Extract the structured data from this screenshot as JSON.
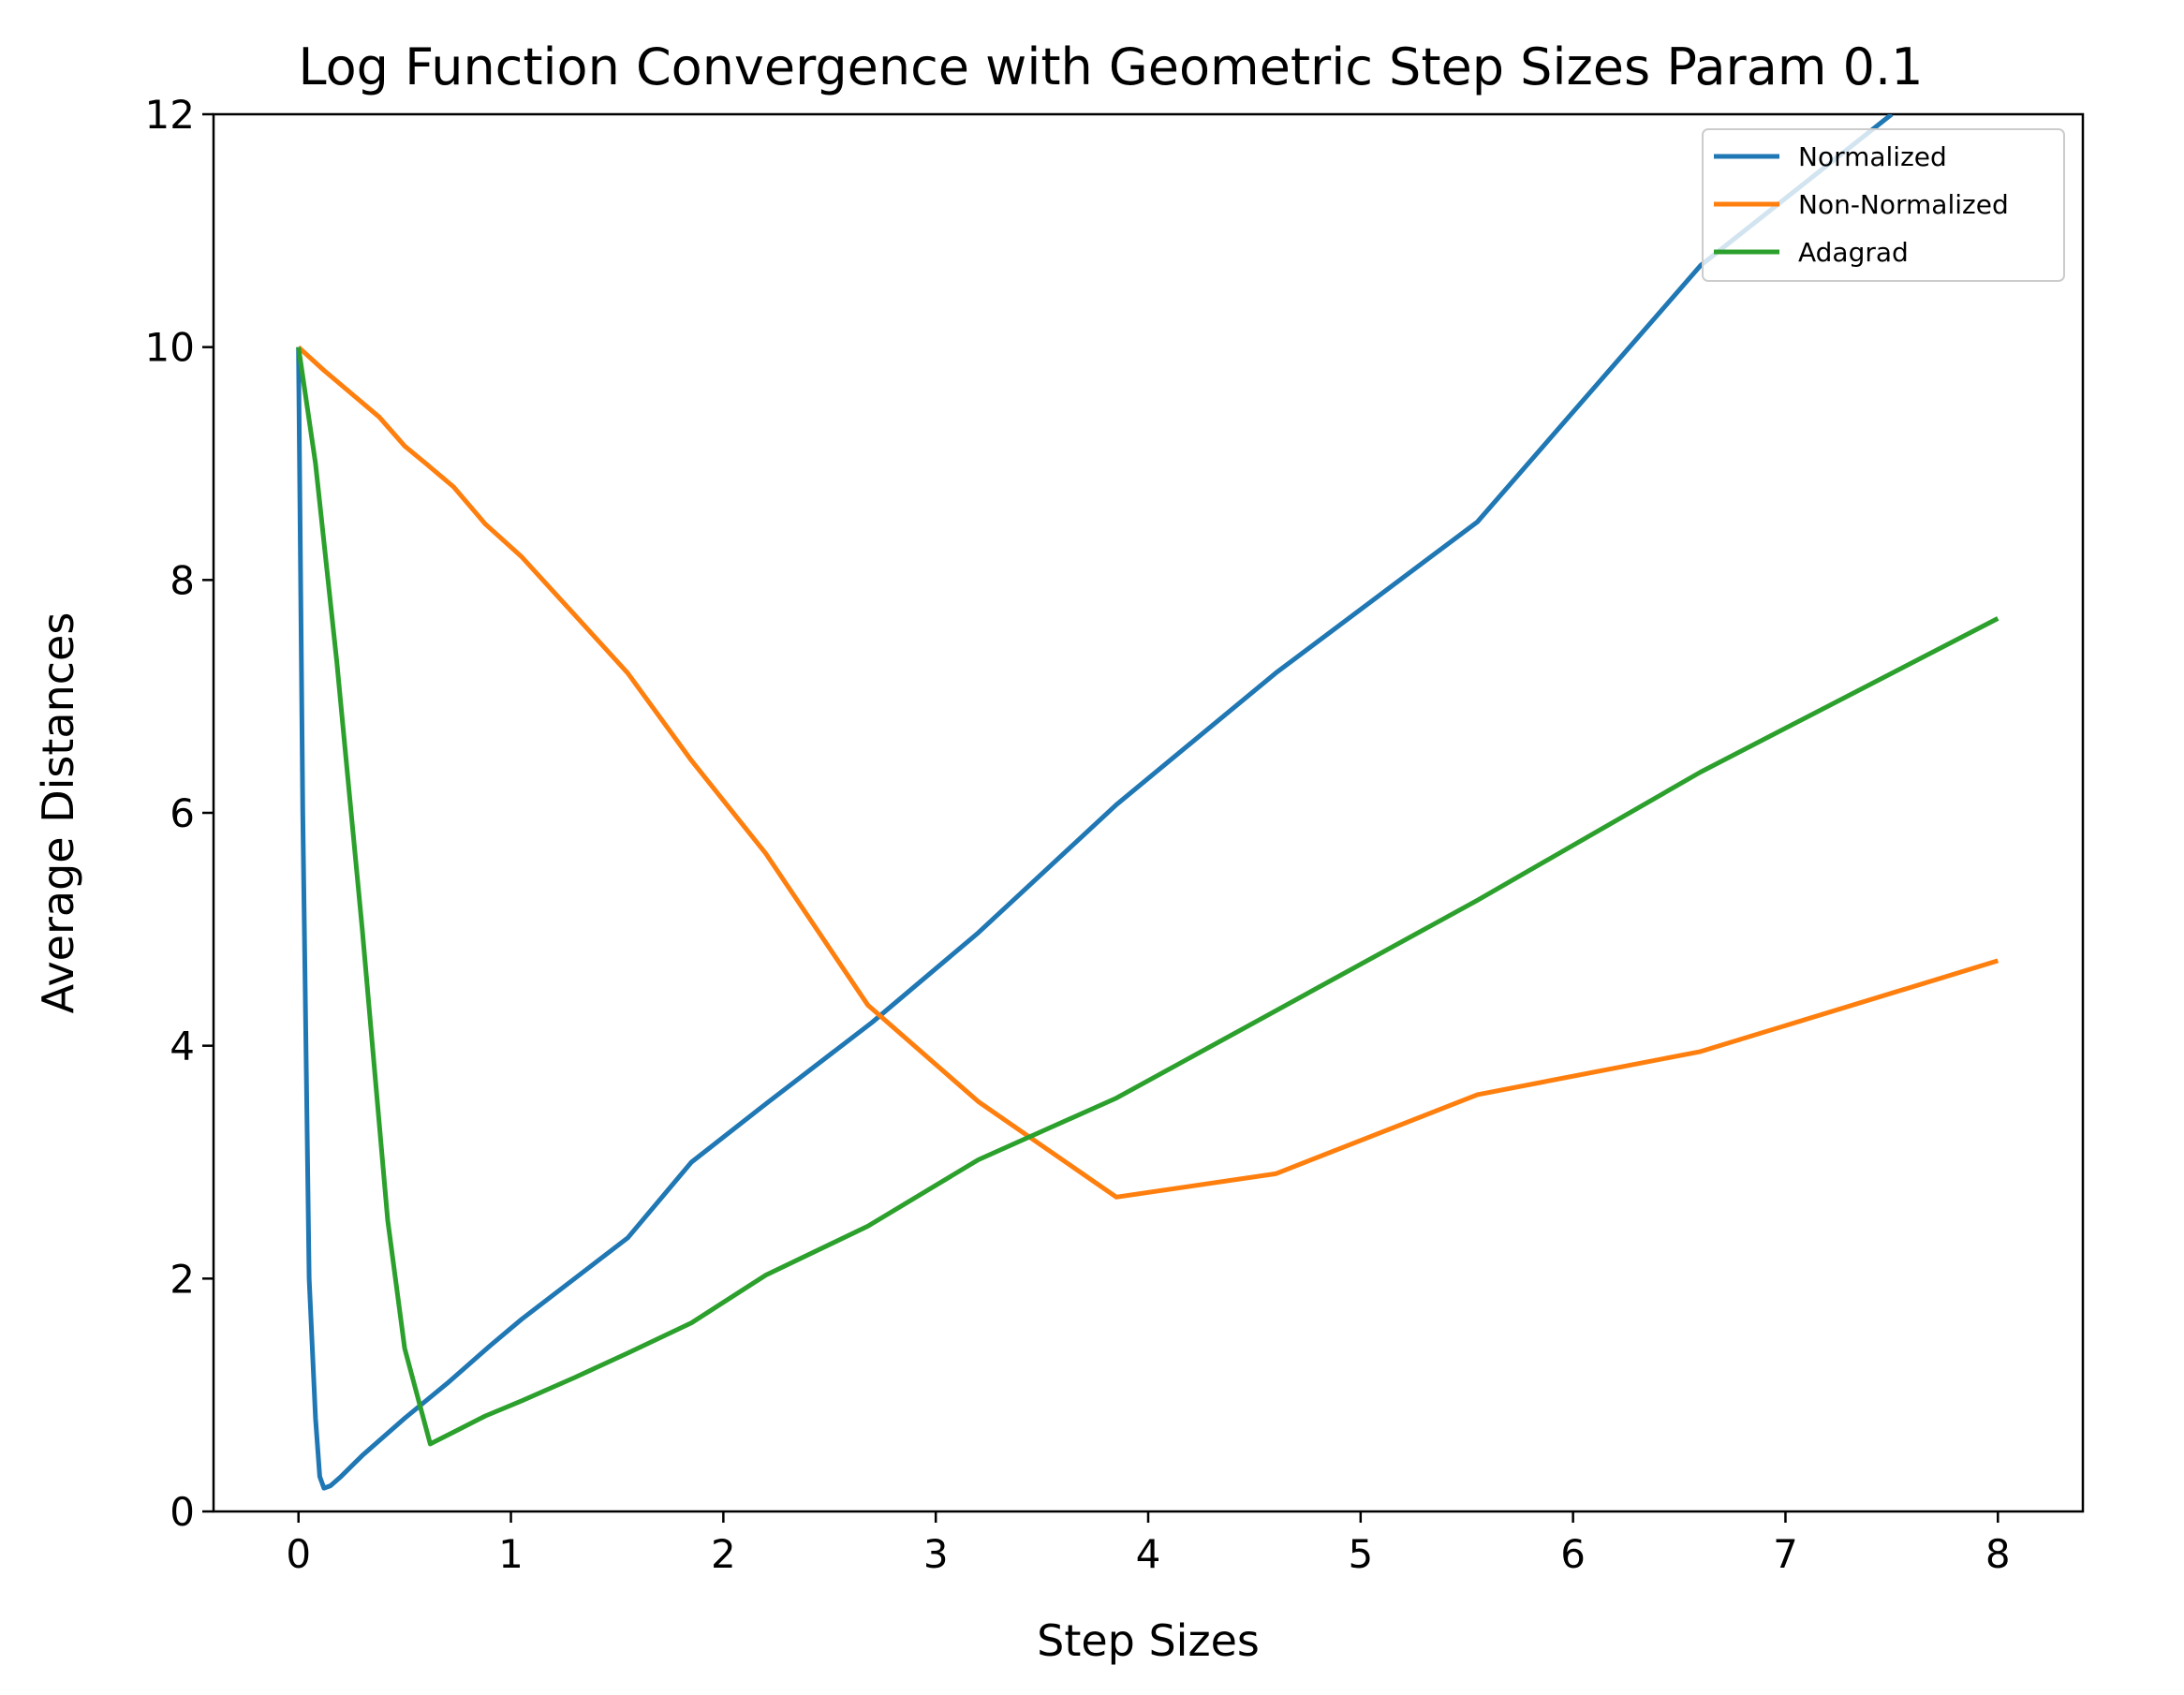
{
  "chart_data": {
    "type": "line",
    "title": "Log Function Convergence with Geometric Step Sizes Param 0.1",
    "xlabel": "Step Sizes",
    "ylabel": "Average Distances",
    "xlim": [
      -0.4,
      8.4
    ],
    "ylim": [
      0,
      12
    ],
    "xticks": [
      "0",
      "1",
      "2",
      "3",
      "4",
      "5",
      "6",
      "7",
      "8"
    ],
    "yticks": [
      "0",
      "2",
      "4",
      "6",
      "8",
      "10",
      "12"
    ],
    "grid": false,
    "legend_position": "top-right",
    "series": [
      {
        "name": "Normalized",
        "color": "#1f77b4",
        "x": [
          0,
          0.02,
          0.05,
          0.08,
          0.1,
          0.12,
          0.15,
          0.2,
          0.3,
          0.5,
          0.7,
          0.9,
          1.05,
          1.3,
          1.55,
          1.85,
          2.2,
          2.7,
          3.2,
          3.85,
          4.6,
          5.55,
          6.6,
          7.5
        ],
        "y": [
          10.0,
          6.0,
          2.0,
          0.8,
          0.3,
          0.2,
          0.22,
          0.3,
          0.48,
          0.8,
          1.1,
          1.42,
          1.65,
          2.0,
          2.35,
          3.0,
          3.5,
          4.2,
          4.97,
          6.07,
          7.2,
          8.5,
          10.7,
          12.0
        ]
      },
      {
        "name": "Non-Normalized",
        "color": "#ff7f0e",
        "x": [
          0,
          0.12,
          0.25,
          0.38,
          0.5,
          0.6,
          0.73,
          0.88,
          1.05,
          1.3,
          1.55,
          1.85,
          2.2,
          2.68,
          3.2,
          3.85,
          4.6,
          5.55,
          6.6,
          8.0
        ],
        "y": [
          10.0,
          9.8,
          9.6,
          9.4,
          9.15,
          9.0,
          8.8,
          8.48,
          8.2,
          7.7,
          7.2,
          6.45,
          5.65,
          4.35,
          3.52,
          2.7,
          2.9,
          3.58,
          3.95,
          4.73
        ]
      },
      {
        "name": "Adagrad",
        "color": "#2ca02c",
        "x": [
          0,
          0.08,
          0.18,
          0.3,
          0.42,
          0.5,
          0.62,
          0.75,
          0.88,
          1.05,
          1.3,
          1.55,
          1.85,
          2.2,
          2.68,
          3.2,
          3.85,
          4.6,
          5.55,
          6.6,
          8.0
        ],
        "y": [
          10.0,
          9.0,
          7.3,
          5.0,
          2.5,
          1.4,
          0.58,
          0.7,
          0.82,
          0.95,
          1.15,
          1.36,
          1.62,
          2.03,
          2.45,
          3.02,
          3.55,
          4.3,
          5.25,
          6.35,
          7.67
        ]
      }
    ]
  }
}
